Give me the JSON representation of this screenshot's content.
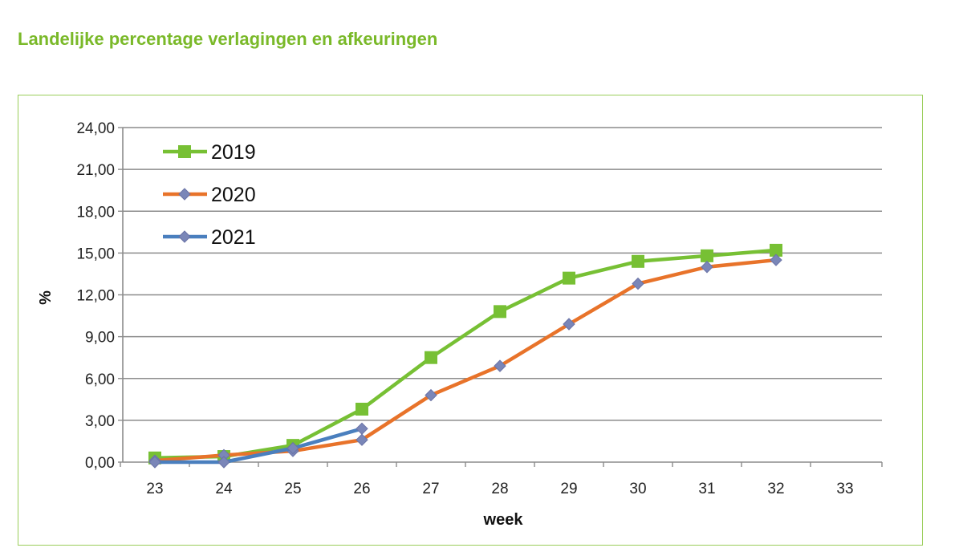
{
  "title": "Landelijke percentage verlagingen en afkeuringen",
  "chart_data": {
    "type": "line",
    "title": "",
    "xlabel": "week",
    "ylabel": "%",
    "x": [
      23,
      24,
      25,
      26,
      27,
      28,
      29,
      30,
      31,
      32,
      33
    ],
    "xlim": [
      23,
      33
    ],
    "ylim": [
      0,
      24
    ],
    "yticks": [
      "0,00",
      "3,00",
      "6,00",
      "9,00",
      "12,00",
      "15,00",
      "18,00",
      "21,00",
      "24,00"
    ],
    "xticks": [
      "23",
      "24",
      "25",
      "26",
      "27",
      "28",
      "29",
      "30",
      "31",
      "32",
      "33"
    ],
    "grid": "horizontal",
    "legend_position": "top-left",
    "series": [
      {
        "name": "2019",
        "color": "#77c034",
        "marker": "square",
        "x": [
          23,
          24,
          25,
          26,
          27,
          28,
          29,
          30,
          31,
          32
        ],
        "values": [
          0.3,
          0.4,
          1.2,
          3.8,
          7.5,
          10.8,
          13.2,
          14.4,
          14.8,
          15.2
        ]
      },
      {
        "name": "2020",
        "color": "#e8732a",
        "marker": "diamond",
        "x": [
          23,
          24,
          25,
          26,
          27,
          28,
          29,
          30,
          31,
          32
        ],
        "values": [
          0.1,
          0.5,
          0.8,
          1.6,
          4.8,
          6.9,
          9.9,
          12.8,
          14.0,
          14.5
        ]
      },
      {
        "name": "2021",
        "color": "#4a7fbe",
        "marker": "diamond",
        "x": [
          23,
          24,
          25,
          26
        ],
        "values": [
          0.0,
          0.0,
          1.0,
          2.4
        ]
      }
    ]
  }
}
